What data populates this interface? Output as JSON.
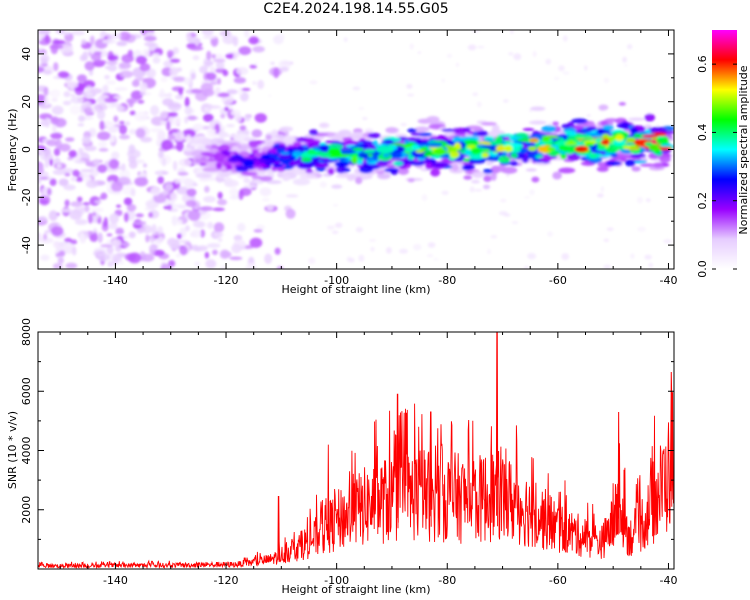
{
  "title": "C2E4.2024.198.14.55.G05",
  "chart_data": [
    {
      "type": "heatmap",
      "xlabel": "Height of straight line (km)",
      "ylabel": "Frequency (Hz)",
      "xlim": [
        -154,
        -39
      ],
      "ylim": [
        -50,
        50
      ],
      "xticks": [
        -140,
        -120,
        -100,
        -80,
        -60,
        -40
      ],
      "yticks": [
        -40,
        -20,
        0,
        20,
        40
      ],
      "colorbar": {
        "label": "Normalized spectral amplitude",
        "range": [
          0.0,
          0.7
        ],
        "ticks": [
          0.0,
          0.2,
          0.4,
          0.6
        ],
        "colormap": [
          "#ffffff",
          "#e6ccff",
          "#9900ff",
          "#0000ff",
          "#00ffff",
          "#00ff00",
          "#ffff00",
          "#ff0000",
          "#ff00ff"
        ]
      },
      "ridge": {
        "x": [
          -125,
          -115,
          -110,
          -100,
          -90,
          -80,
          -70,
          -60,
          -50,
          -40
        ],
        "frequency": [
          -3,
          -5,
          -3,
          -2,
          -1,
          0,
          1,
          2,
          3,
          3
        ],
        "amplitude": [
          0.12,
          0.25,
          0.3,
          0.4,
          0.4,
          0.45,
          0.45,
          0.5,
          0.55,
          0.55
        ]
      },
      "noise_region": {
        "x": [
          -154,
          -125
        ],
        "amplitude": 0.12
      }
    },
    {
      "type": "line",
      "xlabel": "Height of straight line (km)",
      "ylabel": "SNR (10 * v/v)",
      "xlim": [
        -154,
        -39
      ],
      "ylim": [
        0,
        8000
      ],
      "xticks": [
        -140,
        -120,
        -100,
        -80,
        -60,
        -40
      ],
      "yticks": [
        2000,
        4000,
        6000,
        8000
      ],
      "color": "#ff0000",
      "envelope": {
        "x": [
          -154,
          -130,
          -118,
          -112,
          -108,
          -104,
          -100,
          -95,
          -90,
          -85,
          -80,
          -75,
          -71,
          -65,
          -60,
          -55,
          -52,
          -50,
          -49,
          -47,
          -44,
          -42,
          -40,
          -39
        ],
        "y": [
          150,
          180,
          220,
          450,
          900,
          1500,
          2300,
          3000,
          3400,
          3600,
          3500,
          3300,
          3600,
          2800,
          2000,
          1500,
          1300,
          2200,
          3000,
          1500,
          2500,
          3500,
          4500,
          6000
        ]
      },
      "peaks": [
        {
          "x": -110.5,
          "y": 2450
        },
        {
          "x": -101.5,
          "y": 4200
        },
        {
          "x": -89,
          "y": 5900
        },
        {
          "x": -83,
          "y": 5300
        },
        {
          "x": -71,
          "y": 8000
        },
        {
          "x": -49,
          "y": 5300
        },
        {
          "x": -39.5,
          "y": 6650
        }
      ]
    }
  ]
}
